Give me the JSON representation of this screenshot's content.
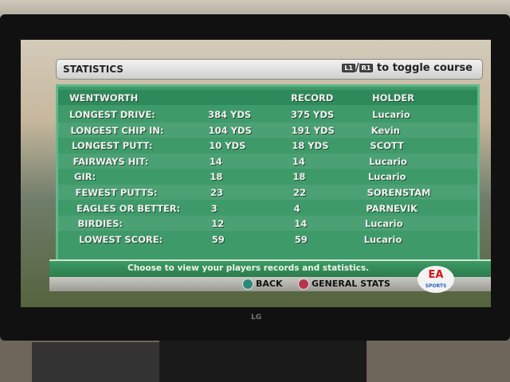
{
  "header": {
    "title": "STATISTICS",
    "toggle_l": "L1",
    "toggle_r": "R1",
    "toggle_text": "to toggle course"
  },
  "table": {
    "course": "WENTWORTH",
    "record_header": "RECORD",
    "holder_header": "HOLDER",
    "rows": [
      {
        "label": "LONGEST DRIVE:",
        "value": "384 YDS",
        "record": "375 YDS",
        "holder": "Lucario"
      },
      {
        "label": "LONGEST CHIP IN:",
        "value": "104 YDS",
        "record": "191 YDS",
        "holder": "Kevin"
      },
      {
        "label": "LONGEST PUTT:",
        "value": "10 YDS",
        "record": "18 YDS",
        "holder": "SCOTT"
      },
      {
        "label": "FAIRWAYS HIT:",
        "value": "14",
        "record": "14",
        "holder": "Lucario"
      },
      {
        "label": "GIR:",
        "value": "18",
        "record": "18",
        "holder": "Lucario"
      },
      {
        "label": "FEWEST PUTTS:",
        "value": "23",
        "record": "22",
        "holder": "SORENSTAM"
      },
      {
        "label": "EAGLES OR BETTER:",
        "value": "3",
        "record": "4",
        "holder": "PARNEVIK"
      },
      {
        "label": "BIRDIES:",
        "value": "12",
        "record": "14",
        "holder": "Lucario"
      },
      {
        "label": "LOWEST SCORE:",
        "value": "59",
        "record": "59",
        "holder": "Lucario"
      }
    ]
  },
  "footer": {
    "hint": "Choose to view your players records and statistics.",
    "back": "BACK",
    "general": "GENERAL STATS",
    "ea": "EA",
    "ea_sub": "SPORTS"
  },
  "tv": {
    "brand": "LG"
  }
}
